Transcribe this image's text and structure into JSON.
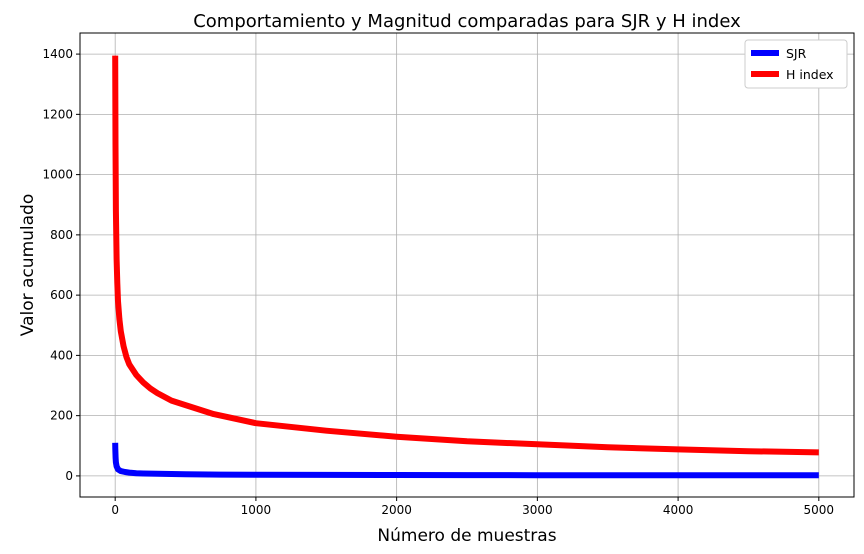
{
  "chart_data": {
    "type": "line",
    "title": "Comportamiento y Magnitud comparadas para SJR y H index",
    "xlabel": "Número de muestras",
    "ylabel": "Valor acumulado",
    "xlim": [
      -250,
      5250
    ],
    "ylim": [
      -70,
      1470
    ],
    "xticks": [
      0,
      1000,
      2000,
      3000,
      4000,
      5000
    ],
    "yticks": [
      0,
      200,
      400,
      600,
      800,
      1000,
      1200,
      1400
    ],
    "grid": true,
    "legend_position": "top-right",
    "series": [
      {
        "name": "SJR",
        "color": "#0000ff",
        "x": [
          0,
          1,
          3,
          5,
          10,
          20,
          40,
          70,
          100,
          150,
          200,
          300,
          500,
          750,
          1000,
          1500,
          2000,
          2500,
          3000,
          3500,
          4000,
          4500,
          5000
        ],
        "y": [
          110,
          90,
          60,
          45,
          32,
          22,
          16,
          13,
          11,
          9,
          8,
          7,
          5.5,
          4.5,
          4,
          3.5,
          3,
          2.8,
          2.5,
          2.3,
          2.1,
          2,
          1.9
        ]
      },
      {
        "name": "H index",
        "color": "#ff0000",
        "x": [
          0,
          2,
          5,
          10,
          15,
          20,
          30,
          40,
          60,
          80,
          100,
          150,
          200,
          250,
          300,
          400,
          500,
          700,
          1000,
          1500,
          2000,
          2500,
          3000,
          3500,
          4000,
          4500,
          5000
        ],
        "y": [
          1395,
          1100,
          880,
          720,
          640,
          580,
          520,
          480,
          430,
          395,
          370,
          335,
          310,
          290,
          275,
          250,
          235,
          205,
          175,
          150,
          130,
          115,
          105,
          95,
          88,
          82,
          78
        ]
      }
    ]
  }
}
